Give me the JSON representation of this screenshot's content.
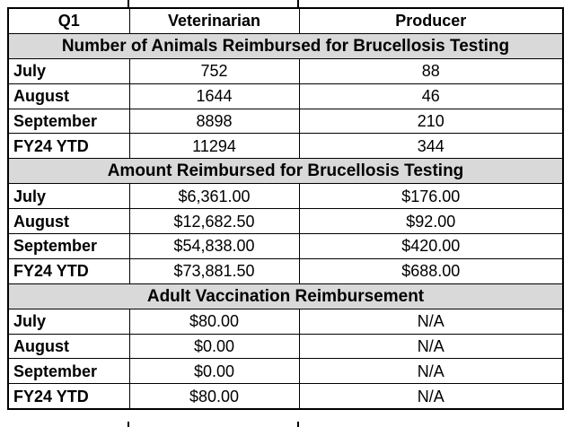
{
  "table": {
    "columns": [
      "Q1",
      "Veterinarian",
      "Producer"
    ],
    "sections": [
      {
        "title": "Number of Animals Reimbursed for Brucellosis Testing",
        "rows": [
          {
            "label": "July",
            "veterinarian": "752",
            "producer": "88"
          },
          {
            "label": "August",
            "veterinarian": "1644",
            "producer": "46"
          },
          {
            "label": "September",
            "veterinarian": "8898",
            "producer": "210"
          },
          {
            "label": "FY24 YTD",
            "veterinarian": "11294",
            "producer": "344"
          }
        ]
      },
      {
        "title": "Amount Reimbursed for Brucellosis Testing",
        "rows": [
          {
            "label": "July",
            "veterinarian": "$6,361.00",
            "producer": "$176.00"
          },
          {
            "label": "August",
            "veterinarian": "$12,682.50",
            "producer": "$92.00"
          },
          {
            "label": "September",
            "veterinarian": "$54,838.00",
            "producer": "$420.00"
          },
          {
            "label": "FY24 YTD",
            "veterinarian": "$73,881.50",
            "producer": "$688.00"
          }
        ]
      },
      {
        "title": "Adult Vaccination Reimbursement",
        "rows": [
          {
            "label": "July",
            "veterinarian": "$80.00",
            "producer": "N/A"
          },
          {
            "label": "August",
            "veterinarian": "$0.00",
            "producer": "N/A"
          },
          {
            "label": "September",
            "veterinarian": "$0.00",
            "producer": "N/A"
          },
          {
            "label": "FY24 YTD",
            "veterinarian": "$80.00",
            "producer": "N/A"
          }
        ]
      }
    ],
    "colors": {
      "section_header_bg": "#d9d9d9",
      "border": "#000000",
      "text": "#000000",
      "background": "#ffffff"
    }
  }
}
